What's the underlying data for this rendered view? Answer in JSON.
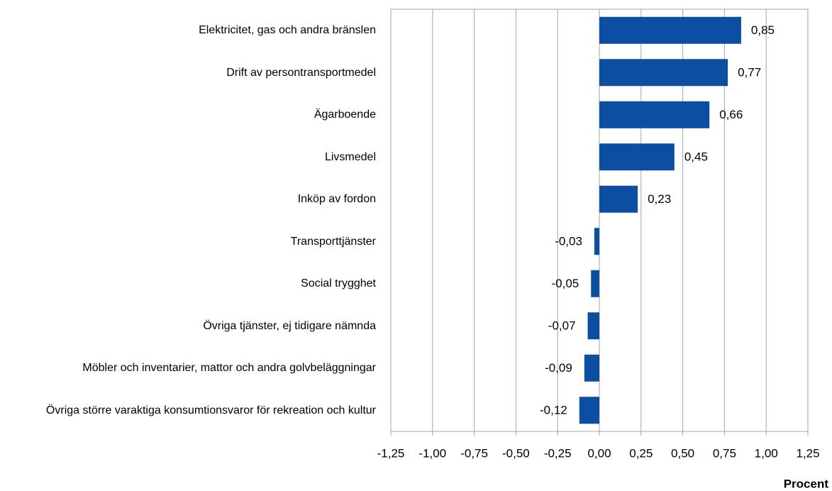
{
  "chart_data": {
    "type": "bar",
    "orientation": "horizontal",
    "categories": [
      "Elektricitet, gas och andra bränslen",
      "Drift av persontransportmedel",
      "Ägarboende",
      "Livsmedel",
      "Inköp av fordon",
      "Transporttjänster",
      "Social trygghet",
      "Övriga tjänster, ej tidigare nämnda",
      "Möbler och inventarier, mattor och andra golvbeläggningar",
      "Övriga större varaktiga konsumtionsvaror för rekreation och kultur"
    ],
    "values": [
      0.85,
      0.77,
      0.66,
      0.45,
      0.23,
      -0.03,
      -0.05,
      -0.07,
      -0.09,
      -0.12
    ],
    "value_labels": [
      "0,85",
      "0,77",
      "0,66",
      "0,45",
      "0,23",
      "-0,03",
      "-0,05",
      "-0,07",
      "-0,09",
      "-0,12"
    ],
    "color": "#0b4ea2",
    "xlim": [
      -1.25,
      1.25
    ],
    "xticks": [
      {
        "value": -1.25,
        "label": "-1,25"
      },
      {
        "value": -1.0,
        "label": "-1,00"
      },
      {
        "value": -0.75,
        "label": "-0,75"
      },
      {
        "value": -0.5,
        "label": "-0,50"
      },
      {
        "value": -0.25,
        "label": "-0,25"
      },
      {
        "value": 0,
        "label": "0,00"
      },
      {
        "value": 0.25,
        "label": "0,25"
      },
      {
        "value": 0.5,
        "label": "0,50"
      },
      {
        "value": 0.75,
        "label": "0,75"
      },
      {
        "value": 1.0,
        "label": "1,00"
      },
      {
        "value": 1.25,
        "label": "1,25"
      }
    ],
    "xlabel": "Procent",
    "grid": true
  }
}
